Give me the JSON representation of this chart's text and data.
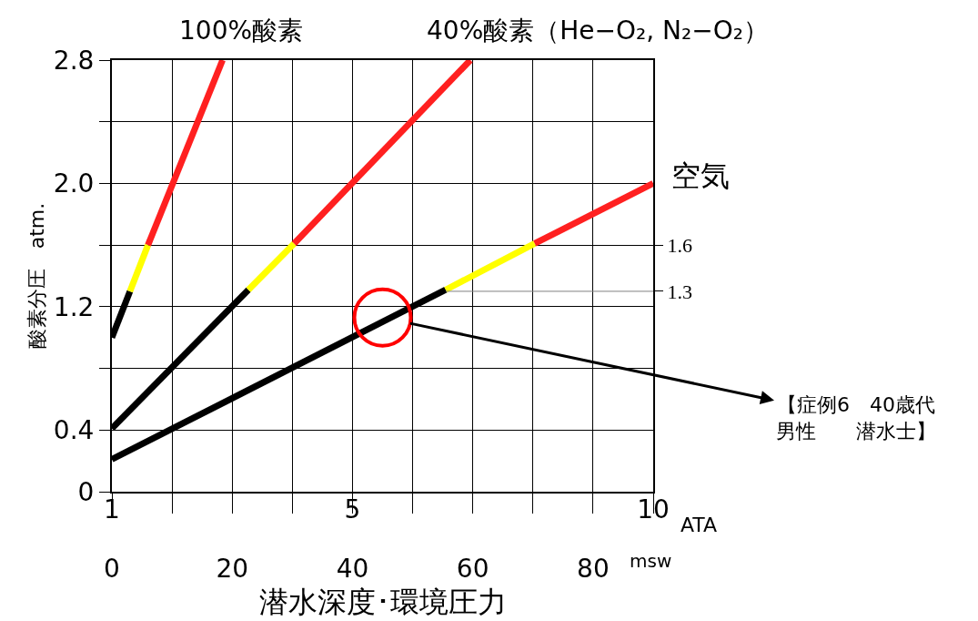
{
  "chart_data": {
    "type": "line",
    "xlabel": "潜水深度･環境圧力",
    "ylabel": "酸素分圧　atm.",
    "x2label": "ATA",
    "series": [
      {
        "color": "#000000",
        "x": [
          0,
          3
        ],
        "values": [
          1.0,
          1.3
        ]
      },
      {
        "color": "#ffff00",
        "x": [
          3,
          6
        ],
        "values": [
          1.3,
          1.6
        ]
      },
      {
        "name": "100%酸素",
        "color": "#ff2020",
        "x": [
          6,
          18.4
        ],
        "values": [
          1.6,
          2.8
        ]
      },
      {
        "color": "#000000",
        "x": [
          0,
          22.7
        ],
        "values": [
          0.41,
          1.31
        ]
      },
      {
        "color": "#ffff00",
        "x": [
          22.7,
          30.3
        ],
        "values": [
          1.31,
          1.61
        ]
      },
      {
        "name": "40%酸素（He−O₂, N₂−O₂）",
        "color": "#ff2020",
        "x": [
          30.3,
          59.6
        ],
        "values": [
          1.61,
          2.8
        ]
      },
      {
        "color": "#000000",
        "x": [
          0,
          55.5
        ],
        "values": [
          0.21,
          1.31
        ]
      },
      {
        "color": "#ffff00",
        "x": [
          55.5,
          70.3
        ],
        "values": [
          1.31,
          1.61
        ]
      },
      {
        "name": "空気",
        "color": "#ff2020",
        "x": [
          70.3,
          90
        ],
        "values": [
          1.61,
          2.0
        ]
      },
      {
        "color": "#808080",
        "x": [
          55.5,
          90
        ],
        "values": [
          1.3,
          1.3
        ]
      }
    ],
    "annotations": [
      "msw",
      {
        "text": "【症例6　40歳代男性　　潜水士】",
        "x": 45,
        "y": 1.13
      }
    ],
    "xlim": [
      0,
      90
    ],
    "xticks": [
      0,
      {
        "value": 10,
        "label": null
      },
      20,
      {
        "value": 30,
        "label": null
      },
      40,
      {
        "value": 50,
        "label": null
      },
      60,
      {
        "value": 70,
        "label": null
      },
      80,
      {
        "value": 90,
        "label": null
      }
    ],
    "x2lim": [
      1,
      10
    ],
    "x2ticks": [
      1,
      5,
      10
    ],
    "ylim": [
      0,
      2.8
    ],
    "yticks": [
      0,
      0.4,
      {
        "value": 0.8,
        "label": null
      },
      1.2,
      {
        "value": 1.6,
        "label": null
      },
      {
        "value": 2,
        "label": "2.0"
      },
      {
        "value": 2.4,
        "label": null
      },
      2.8
    ],
    "y2lim": [
      0,
      2.8
    ],
    "y2ticks": [
      1.3,
      1.6
    ],
    "grid": true,
    "legend": false
  }
}
